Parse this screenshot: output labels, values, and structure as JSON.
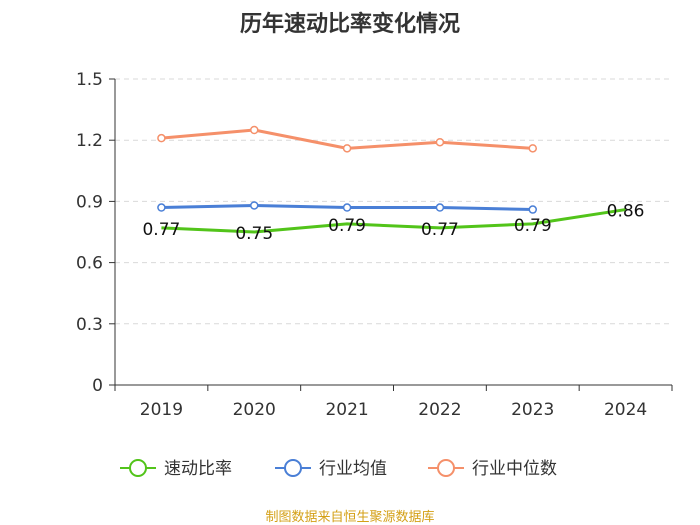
{
  "chart_data": {
    "type": "line",
    "title": "历年速动比率变化情况",
    "categories": [
      "2019",
      "2020",
      "2021",
      "2022",
      "2023",
      "2024"
    ],
    "ylim": [
      0,
      1.5
    ],
    "yticks": [
      "0",
      "0.3",
      "0.6",
      "0.9",
      "1.2",
      "1.5"
    ],
    "ytick_values": [
      0,
      0.3,
      0.6,
      0.9,
      1.2,
      1.5
    ],
    "grid": true,
    "legend_position": "bottom",
    "series": [
      {
        "name": "速动比率",
        "color": "#52c41a",
        "values": [
          0.77,
          0.75,
          0.79,
          0.77,
          0.79,
          0.86
        ],
        "labels": [
          "0.77",
          "0.75",
          "0.79",
          "0.77",
          "0.79",
          "0.86"
        ]
      },
      {
        "name": "行业均值",
        "color": "#4a7fd6",
        "values": [
          0.87,
          0.88,
          0.87,
          0.87,
          0.86,
          null
        ]
      },
      {
        "name": "行业中位数",
        "color": "#f5906a",
        "values": [
          1.21,
          1.25,
          1.16,
          1.19,
          1.16,
          null
        ]
      }
    ]
  },
  "source_note": "制图数据来自恒生聚源数据库"
}
